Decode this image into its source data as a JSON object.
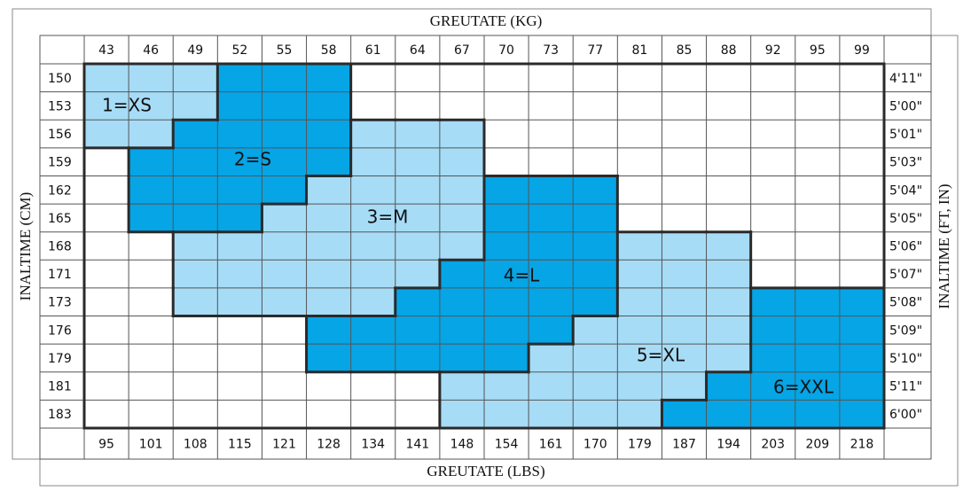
{
  "title_top": "GREUTATE (KG)",
  "title_bottom": "GREUTATE (LBS)",
  "title_left": "INALTIME (CM)",
  "title_right": "INALTIME (FT, IN)",
  "kg": [
    43,
    46,
    49,
    52,
    55,
    58,
    61,
    64,
    67,
    70,
    73,
    77,
    81,
    85,
    88,
    92,
    95,
    99
  ],
  "lbs": [
    95,
    101,
    108,
    115,
    121,
    128,
    134,
    141,
    148,
    154,
    161,
    170,
    179,
    187,
    194,
    203,
    209,
    218
  ],
  "cm": [
    150,
    153,
    156,
    159,
    162,
    165,
    168,
    171,
    173,
    176,
    179,
    181,
    183
  ],
  "ft_in": [
    "4'11\"",
    "5'00\"",
    "5'01\"",
    "5'03\"",
    "5'04\"",
    "5'05\"",
    "5'06\"",
    "5'07\"",
    "5'08\"",
    "5'09\"",
    "5'10\"",
    "5'11\"",
    "6'00\""
  ],
  "sizes": [
    {
      "label": "1=XS",
      "color": "#a6dcf6",
      "ranges": [
        {
          "cm": 150,
          "from": 43,
          "to": 49
        },
        {
          "cm": 153,
          "from": 43,
          "to": 49
        },
        {
          "cm": 156,
          "from": 43,
          "to": 46
        }
      ]
    },
    {
      "label": "2=S",
      "color": "#05a5e6",
      "ranges": [
        {
          "cm": 150,
          "from": 52,
          "to": 58
        },
        {
          "cm": 153,
          "from": 52,
          "to": 58
        },
        {
          "cm": 156,
          "from": 49,
          "to": 58
        },
        {
          "cm": 159,
          "from": 46,
          "to": 58
        },
        {
          "cm": 162,
          "from": 46,
          "to": 55
        },
        {
          "cm": 165,
          "from": 46,
          "to": 52
        }
      ]
    },
    {
      "label": "3=M",
      "color": "#a6dcf6",
      "ranges": [
        {
          "cm": 156,
          "from": 61,
          "to": 67
        },
        {
          "cm": 159,
          "from": 61,
          "to": 67
        },
        {
          "cm": 162,
          "from": 58,
          "to": 67
        },
        {
          "cm": 165,
          "from": 55,
          "to": 67
        },
        {
          "cm": 168,
          "from": 49,
          "to": 67
        },
        {
          "cm": 171,
          "from": 49,
          "to": 64
        },
        {
          "cm": 173,
          "from": 49,
          "to": 61
        }
      ]
    },
    {
      "label": "4=L",
      "color": "#05a5e6",
      "ranges": [
        {
          "cm": 162,
          "from": 70,
          "to": 77
        },
        {
          "cm": 165,
          "from": 70,
          "to": 77
        },
        {
          "cm": 168,
          "from": 70,
          "to": 77
        },
        {
          "cm": 171,
          "from": 67,
          "to": 77
        },
        {
          "cm": 173,
          "from": 64,
          "to": 77
        },
        {
          "cm": 176,
          "from": 58,
          "to": 73
        },
        {
          "cm": 179,
          "from": 58,
          "to": 70
        }
      ]
    },
    {
      "label": "5=XL",
      "color": "#a6dcf6",
      "ranges": [
        {
          "cm": 168,
          "from": 81,
          "to": 88
        },
        {
          "cm": 171,
          "from": 81,
          "to": 88
        },
        {
          "cm": 173,
          "from": 81,
          "to": 88
        },
        {
          "cm": 176,
          "from": 77,
          "to": 88
        },
        {
          "cm": 179,
          "from": 73,
          "to": 88
        },
        {
          "cm": 181,
          "from": 67,
          "to": 85
        },
        {
          "cm": 183,
          "from": 67,
          "to": 81
        }
      ]
    },
    {
      "label": "6=XXL",
      "color": "#05a5e6",
      "ranges": [
        {
          "cm": 173,
          "from": 92,
          "to": 99
        },
        {
          "cm": 176,
          "from": 92,
          "to": 99
        },
        {
          "cm": 179,
          "from": 92,
          "to": 99
        },
        {
          "cm": 181,
          "from": 88,
          "to": 99
        },
        {
          "cm": 183,
          "from": 85,
          "to": 99
        }
      ]
    }
  ]
}
